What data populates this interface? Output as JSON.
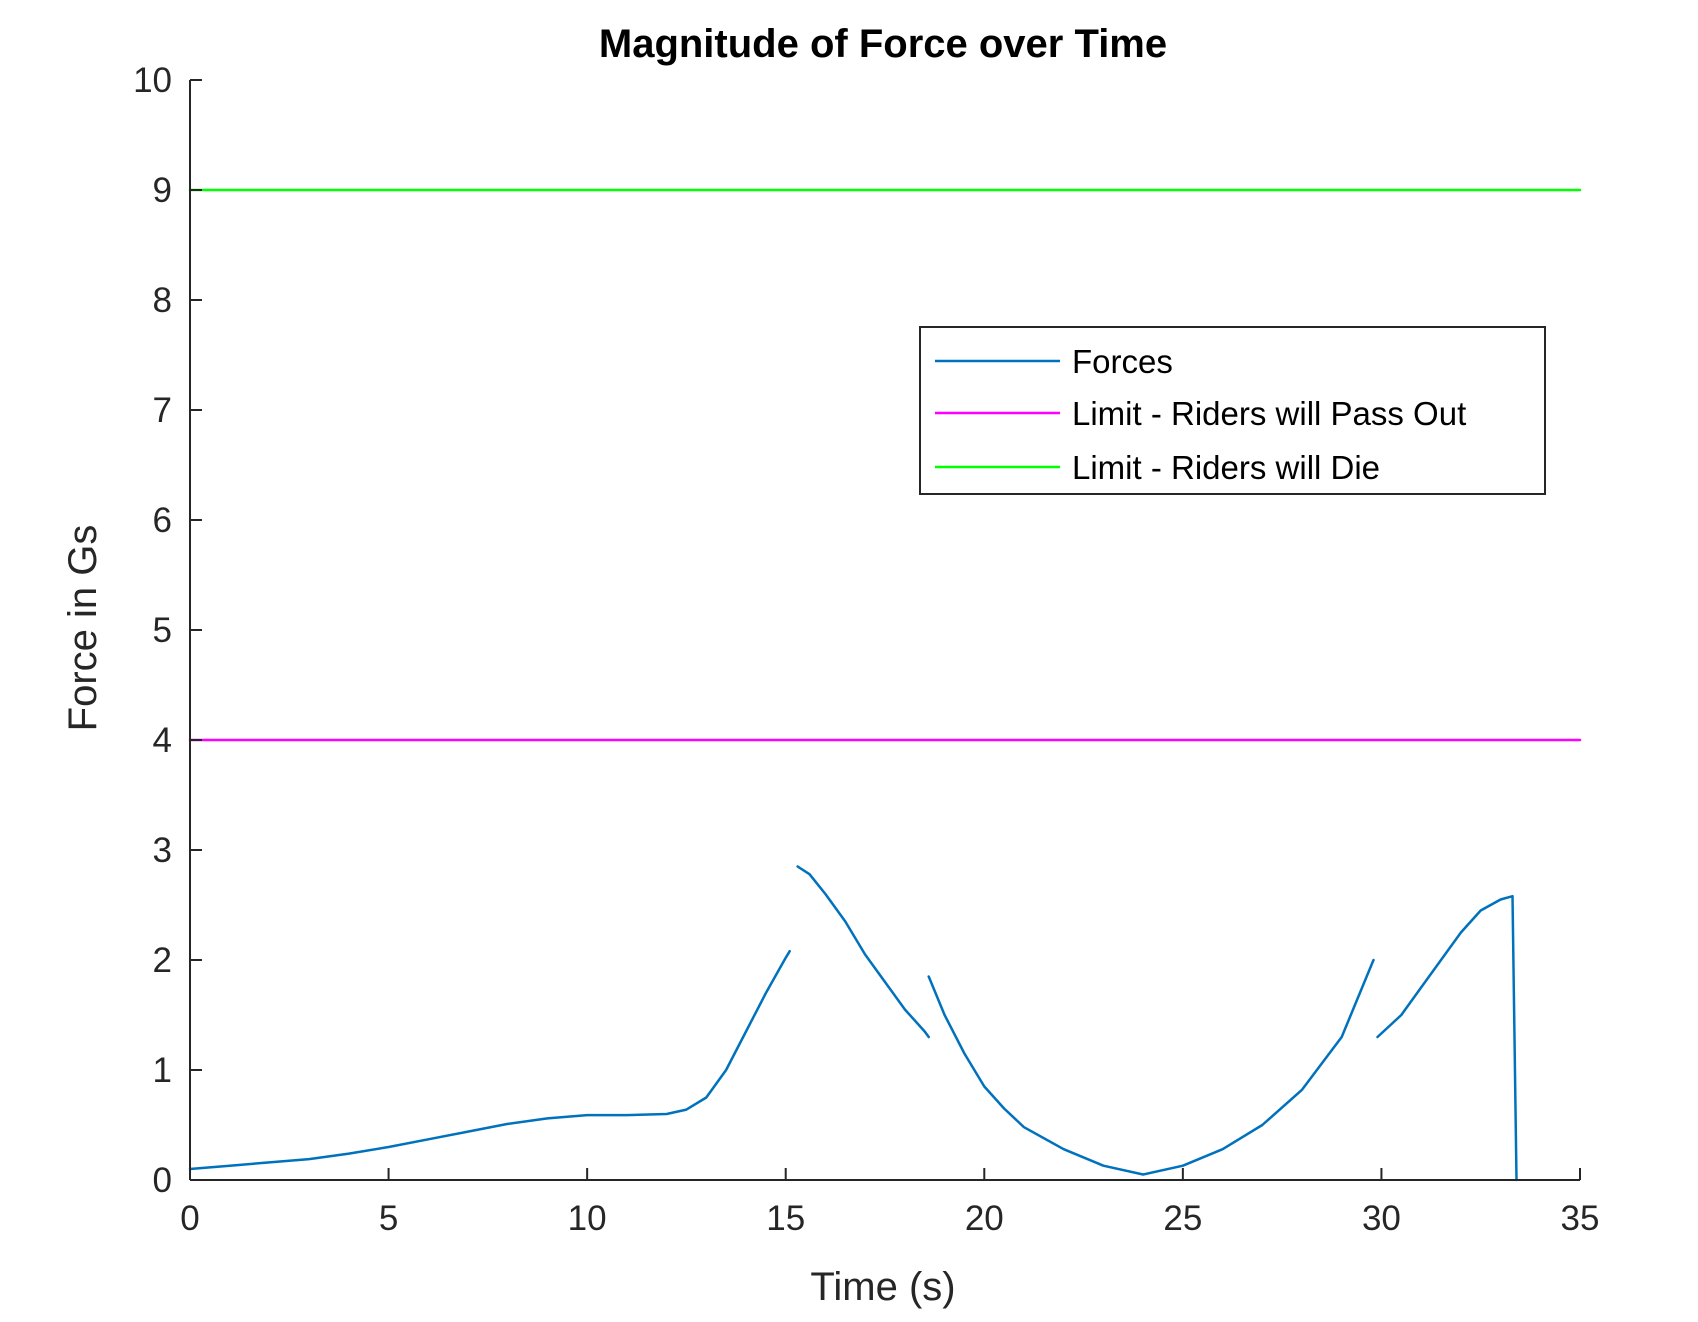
{
  "chart_data": {
    "type": "line",
    "title": "Magnitude of Force over Time",
    "xlabel": "Time (s)",
    "ylabel": "Force in Gs",
    "xlim": [
      0,
      35
    ],
    "ylim": [
      0,
      10
    ],
    "xticks": [
      "0",
      "5",
      "10",
      "15",
      "20",
      "25",
      "30",
      "35"
    ],
    "yticks": [
      "0",
      "1",
      "2",
      "3",
      "4",
      "5",
      "6",
      "7",
      "8",
      "9",
      "10"
    ],
    "grid": false,
    "legend_position": "top-right",
    "series": [
      {
        "name": "Forces",
        "color": "#0072BD",
        "segments": [
          {
            "x": [
              0,
              1,
              2,
              3,
              4,
              5,
              6,
              7,
              8,
              9,
              10,
              11,
              12,
              12.5,
              13,
              13.5,
              14,
              14.5,
              15,
              15.1
            ],
            "y": [
              0.1,
              0.13,
              0.16,
              0.19,
              0.24,
              0.3,
              0.37,
              0.44,
              0.51,
              0.56,
              0.59,
              0.59,
              0.6,
              0.64,
              0.75,
              1.0,
              1.35,
              1.7,
              2.02,
              2.08
            ]
          },
          {
            "x": [
              15.3,
              15.6,
              16,
              16.5,
              17,
              17.5,
              18,
              18.5,
              18.6
            ],
            "y": [
              2.85,
              2.78,
              2.6,
              2.35,
              2.05,
              1.8,
              1.55,
              1.35,
              1.3
            ]
          },
          {
            "x": [
              18.6,
              19,
              19.5,
              20,
              20.5,
              21,
              22,
              23,
              24,
              25,
              26,
              27,
              28,
              29,
              29.8
            ],
            "y": [
              1.85,
              1.5,
              1.15,
              0.85,
              0.65,
              0.48,
              0.28,
              0.13,
              0.05,
              0.13,
              0.28,
              0.5,
              0.82,
              1.3,
              2.0
            ]
          },
          {
            "x": [
              29.9,
              30.5,
              31,
              31.5,
              32,
              32.5,
              33,
              33.3,
              33.4
            ],
            "y": [
              1.3,
              1.5,
              1.75,
              2.0,
              2.25,
              2.45,
              2.55,
              2.58,
              0
            ]
          }
        ]
      },
      {
        "name": "Limit - Riders will Pass Out",
        "color": "#FF00FF",
        "segments": [
          {
            "x": [
              0,
              35
            ],
            "y": [
              4,
              4
            ]
          }
        ]
      },
      {
        "name": "Limit - Riders will Die",
        "color": "#00FF00",
        "segments": [
          {
            "x": [
              0,
              35
            ],
            "y": [
              9,
              9
            ]
          }
        ]
      }
    ]
  }
}
